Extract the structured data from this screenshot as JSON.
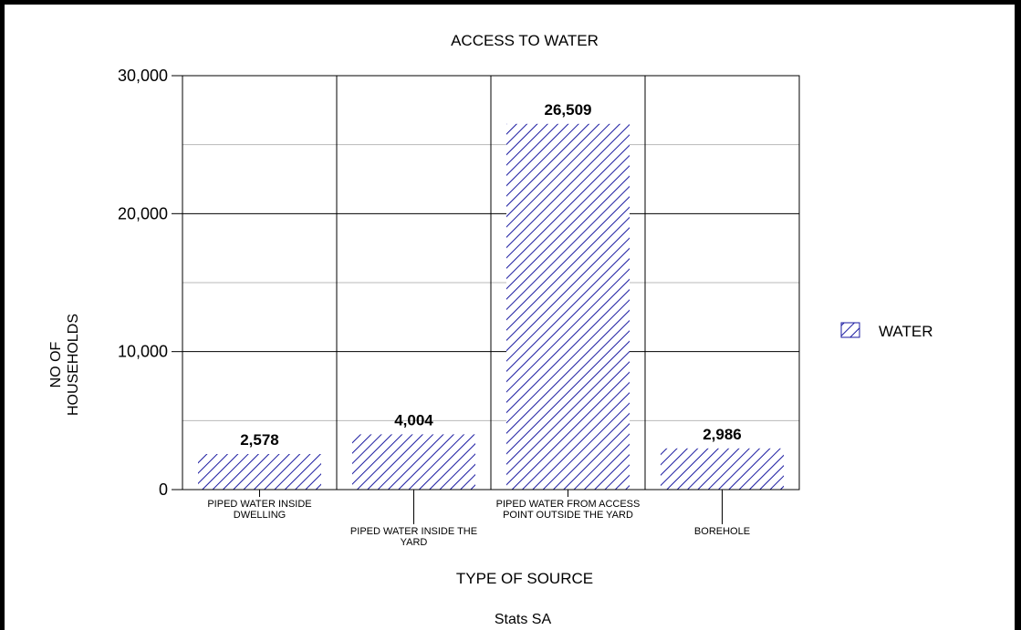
{
  "chart_data": {
    "type": "bar",
    "title": "ACCESS TO WATER",
    "xlabel": "TYPE OF SOURCE",
    "ylabel_lines": [
      "NO OF",
      "HOUSEHOLDS"
    ],
    "caption": "Stats SA",
    "categories": [
      [
        "PIPED WATER INSIDE",
        "DWELLING"
      ],
      [
        "PIPED WATER INSIDE THE",
        "YARD"
      ],
      [
        "PIPED WATER FROM ACCESS",
        "POINT OUTSIDE THE YARD"
      ],
      [
        "BOREHOLE"
      ]
    ],
    "series": [
      {
        "name": "WATER",
        "values": [
          2578,
          4004,
          26509,
          2986
        ]
      }
    ],
    "value_labels": [
      "2,578",
      "4,004",
      "26,509",
      "2,986"
    ],
    "ylim": [
      0,
      30000
    ],
    "yticks": [
      0,
      10000,
      20000,
      30000
    ],
    "ytick_labels": [
      "0",
      "10,000",
      "20,000",
      "30,000"
    ],
    "minor_gridlines": [
      5000,
      15000,
      25000
    ],
    "legend_position": "right",
    "bar_color": "#1a1aa0",
    "bar_pattern": "diagonal-hatch"
  }
}
